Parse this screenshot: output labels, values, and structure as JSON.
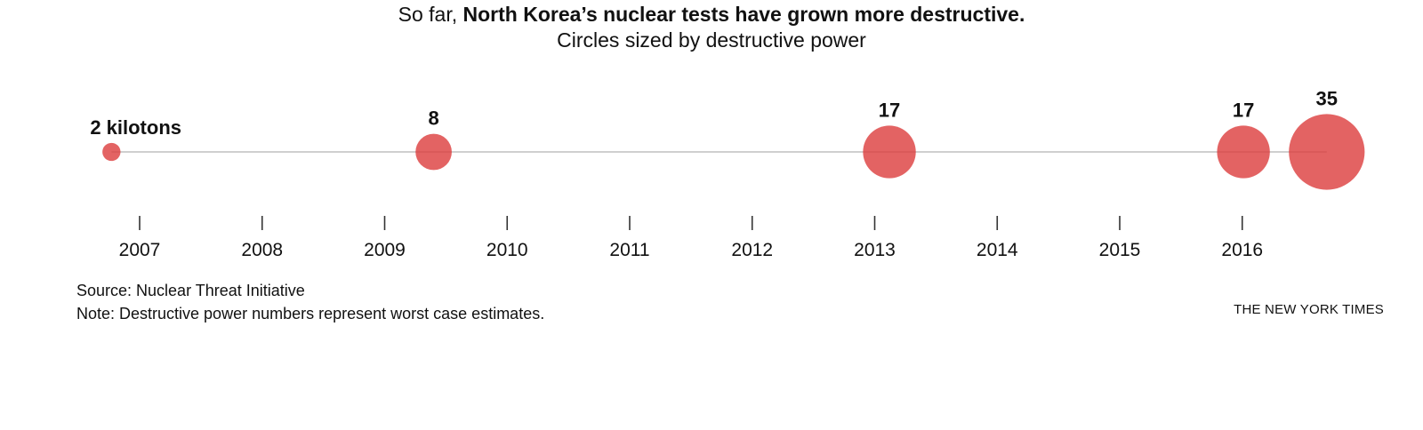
{
  "header": {
    "title_prefix": "So far, ",
    "title_bold": "North Korea’s nuclear tests have grown more destructive.",
    "subtitle": "Circles sized by destructive power"
  },
  "chart_data": {
    "type": "scatter",
    "title": "So far, North Korea’s nuclear tests have grown more destructive.",
    "subtitle": "Circles sized by destructive power",
    "xlabel": "",
    "ylabel": "",
    "x_ticks": [
      "2007",
      "2008",
      "2009",
      "2010",
      "2011",
      "2012",
      "2013",
      "2014",
      "2015",
      "2016"
    ],
    "xlim": [
      2006.7,
      2017.0
    ],
    "size_encodes": "destructive power (kilotons)",
    "points": [
      {
        "date": "2006-10-09",
        "x": 2006.77,
        "value": 2,
        "label": "2 kilotons"
      },
      {
        "date": "2009-05-25",
        "x": 2009.4,
        "value": 8,
        "label": "8"
      },
      {
        "date": "2013-02-12",
        "x": 2013.12,
        "value": 17,
        "label": "17"
      },
      {
        "date": "2016-01-06",
        "x": 2016.01,
        "value": 17,
        "label": "17"
      },
      {
        "date": "2016-09-09",
        "x": 2016.69,
        "value": 35,
        "label": "35"
      }
    ],
    "color": "#dc3c3c",
    "grid": false,
    "legend": "none"
  },
  "footer": {
    "source": "Source: Nuclear Threat Initiative",
    "note": "Note: Destructive power numbers represent worst case estimates.",
    "credit": "THE NEW YORK TIMES"
  }
}
